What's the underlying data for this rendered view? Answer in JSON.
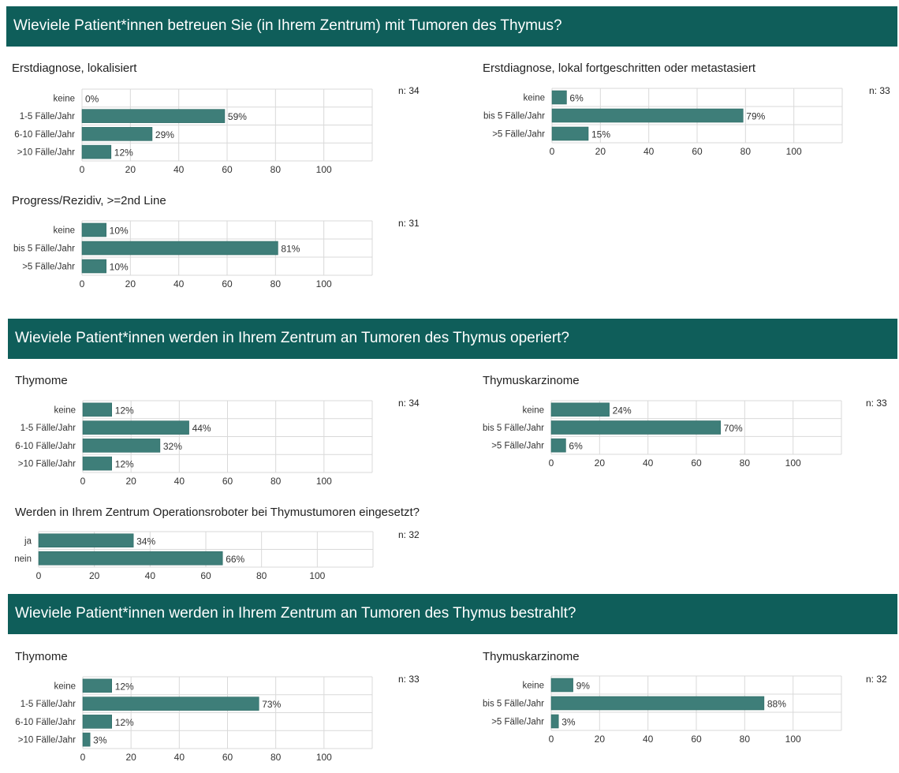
{
  "sections": [
    {
      "title": "Wieviele Patient*innen betreuen Sie (in Ihrem Zentrum) mit Tumoren des Thymus?"
    },
    {
      "title": "Wieviele Patient*innen werden in Ihrem Zentrum an Tumoren des Thymus operiert?"
    },
    {
      "title": "Wieviele Patient*innen werden in Ihrem Zentrum an Tumoren des Thymus bestrahlt?"
    }
  ],
  "colors": {
    "banner": "#0f5e5a",
    "bar": "#3e7e79",
    "grid": "#d9d9d9"
  },
  "chart_data": [
    {
      "type": "bar",
      "title": "Erstdiagnose, lokalisiert",
      "n": "n: 34",
      "categories": [
        "keine",
        "1-5 Fälle/Jahr",
        "6-10 Fälle/Jahr",
        ">10 Fälle/Jahr"
      ],
      "values": [
        0,
        59,
        29,
        12
      ],
      "labels": [
        "0%",
        "59%",
        "29%",
        "12%"
      ],
      "xlim": [
        0,
        120
      ],
      "ticks": [
        "0",
        "20",
        "40",
        "60",
        "80",
        "100"
      ],
      "grid": true
    },
    {
      "type": "bar",
      "title": "Erstdiagnose, lokal fortgeschritten oder metastasiert",
      "n": "n: 33",
      "categories": [
        "keine",
        "bis 5 Fälle/Jahr",
        ">5 Fälle/Jahr"
      ],
      "values": [
        6,
        79,
        15
      ],
      "labels": [
        "6%",
        "79%",
        "15%"
      ],
      "xlim": [
        0,
        120
      ],
      "ticks": [
        "0",
        "20",
        "40",
        "60",
        "80",
        "100"
      ],
      "grid": true
    },
    {
      "type": "bar",
      "title": "Progress/Rezidiv, >=2nd Line",
      "n": "n: 31",
      "categories": [
        "keine",
        "bis 5 Fälle/Jahr",
        ">5 Fälle/Jahr"
      ],
      "values": [
        10,
        81,
        10
      ],
      "labels": [
        "10%",
        "81%",
        "10%"
      ],
      "xlim": [
        0,
        120
      ],
      "ticks": [
        "0",
        "20",
        "40",
        "60",
        "80",
        "100"
      ],
      "grid": true
    },
    {
      "type": "bar",
      "title": "Thymome",
      "n": "n: 34",
      "categories": [
        "keine",
        "1-5 Fälle/Jahr",
        "6-10 Fälle/Jahr",
        ">10 Fälle/Jahr"
      ],
      "values": [
        12,
        44,
        32,
        12
      ],
      "labels": [
        "12%",
        "44%",
        "32%",
        "12%"
      ],
      "xlim": [
        0,
        120
      ],
      "ticks": [
        "0",
        "20",
        "40",
        "60",
        "80",
        "100"
      ],
      "grid": true
    },
    {
      "type": "bar",
      "title": "Thymuskarzinome",
      "n": "n: 33",
      "categories": [
        "keine",
        "bis 5 Fälle/Jahr",
        ">5 Fälle/Jahr"
      ],
      "values": [
        24,
        70,
        6
      ],
      "labels": [
        "24%",
        "70%",
        "6%"
      ],
      "xlim": [
        0,
        120
      ],
      "ticks": [
        "0",
        "20",
        "40",
        "60",
        "80",
        "100"
      ],
      "grid": true
    },
    {
      "type": "bar",
      "title": "Werden in Ihrem Zentrum Operationsroboter bei Thymustumoren eingesetzt?",
      "n": "n: 32",
      "categories": [
        "ja",
        "nein"
      ],
      "values": [
        34,
        66
      ],
      "labels": [
        "34%",
        "66%"
      ],
      "xlim": [
        0,
        120
      ],
      "ticks": [
        "0",
        "20",
        "40",
        "60",
        "80",
        "100"
      ],
      "grid": true
    },
    {
      "type": "bar",
      "title": "Thymome",
      "n": "n: 33",
      "categories": [
        "keine",
        "1-5 Fälle/Jahr",
        "6-10 Fälle/Jahr",
        ">10 Fälle/Jahr"
      ],
      "values": [
        12,
        73,
        12,
        3
      ],
      "labels": [
        "12%",
        "73%",
        "12%",
        "3%"
      ],
      "xlim": [
        0,
        120
      ],
      "ticks": [
        "0",
        "20",
        "40",
        "60",
        "80",
        "100"
      ],
      "grid": true
    },
    {
      "type": "bar",
      "title": "Thymuskarzinome",
      "n": "n: 32",
      "categories": [
        "keine",
        "bis 5 Fälle/Jahr",
        ">5 Fälle/Jahr"
      ],
      "values": [
        9,
        88,
        3
      ],
      "labels": [
        "9%",
        "88%",
        "3%"
      ],
      "xlim": [
        0,
        120
      ],
      "ticks": [
        "0",
        "20",
        "40",
        "60",
        "80",
        "100"
      ],
      "grid": true
    }
  ]
}
